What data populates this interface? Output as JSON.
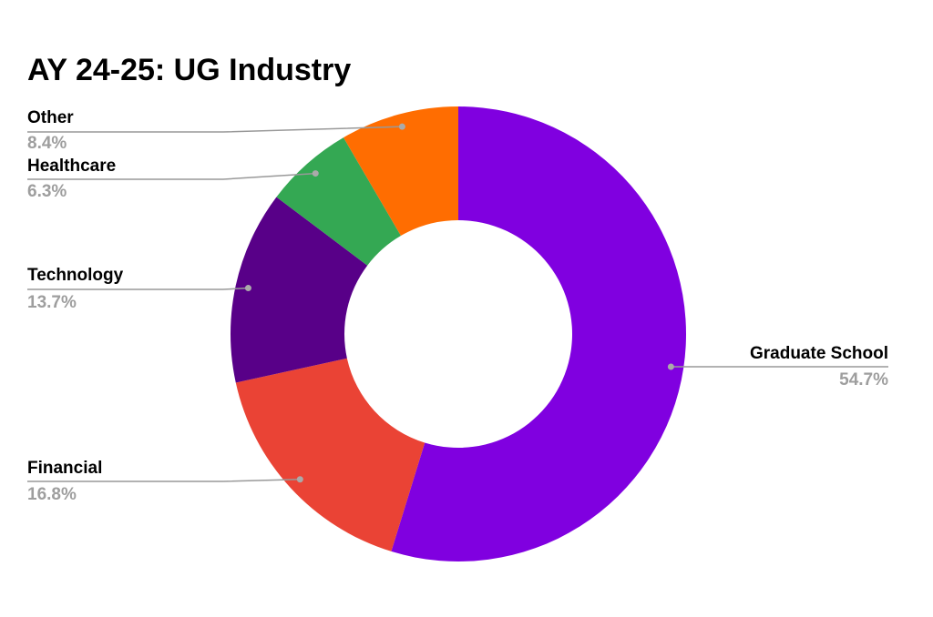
{
  "chart_data": {
    "type": "donut",
    "title": "AY 24-25: UG Industry",
    "categories": [
      "Graduate School",
      "Financial",
      "Technology",
      "Healthcare",
      "Other"
    ],
    "values": [
      54.7,
      16.8,
      13.7,
      6.3,
      8.4
    ],
    "value_labels": [
      "54.7%",
      "16.8%",
      "13.7%",
      "6.3%",
      "8.4%"
    ],
    "colors": [
      "#8000e0",
      "#ea4335",
      "#580088",
      "#34a853",
      "#ff6d01"
    ]
  }
}
